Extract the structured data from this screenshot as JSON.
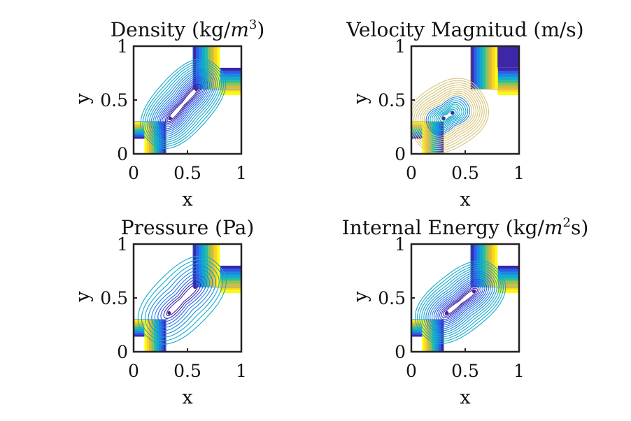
{
  "colors": {
    "colormap": [
      "#3e26a8",
      "#2e5be8",
      "#1d87e4",
      "#16a9cd",
      "#2bbda0",
      "#89c45c",
      "#d6bb3b",
      "#fdd226",
      "#f9fb0e"
    ],
    "axes": "#222222",
    "background": "#ffffff"
  },
  "chart_data": [
    {
      "id": "density",
      "type": "contour",
      "title": "Density (kg/m³)",
      "title_main": "Density (kg/",
      "title_var": "m",
      "title_sup": "3",
      "title_tail": ")",
      "xlabel": "x",
      "ylabel": "y",
      "xlim": [
        0,
        1
      ],
      "ylim": [
        0,
        1
      ],
      "xticks": [
        0,
        0.5,
        1
      ],
      "yticks": [
        0,
        0.5,
        1
      ],
      "xtick_labels": [
        "0",
        "0.5",
        "1"
      ],
      "ytick_labels": [
        "0",
        "0.5",
        "1"
      ],
      "cores": [
        [
          0.34,
          0.33
        ],
        [
          0.58,
          0.6
        ]
      ],
      "radius": 0.29,
      "levels": 16,
      "band_style": "bright"
    },
    {
      "id": "velocity",
      "type": "contour",
      "title": "Velocity Magnitud (m/s)",
      "title_main": "Velocity Magnitud (m/s)",
      "title_var": "",
      "title_sup": "",
      "title_tail": "",
      "xlabel": "x",
      "ylabel": "y",
      "xlim": [
        0,
        1
      ],
      "ylim": [
        0,
        1
      ],
      "xticks": [
        0,
        0.5,
        1
      ],
      "yticks": [
        0,
        0.5,
        1
      ],
      "xtick_labels": [
        "0",
        "0.5",
        "1"
      ],
      "ytick_labels": [
        "0",
        "0.5",
        "1"
      ],
      "cores": [
        [
          0.3,
          0.33
        ],
        [
          0.38,
          0.38
        ]
      ],
      "radius": 0.33,
      "levels": 18,
      "band_style": "velocity"
    },
    {
      "id": "pressure",
      "type": "contour",
      "title": "Pressure (Pa)",
      "title_main": "Pressure (Pa)",
      "title_var": "",
      "title_sup": "",
      "title_tail": "",
      "xlabel": "x",
      "ylabel": "y",
      "xlim": [
        0,
        1
      ],
      "ylim": [
        0,
        1
      ],
      "xticks": [
        0,
        0.5,
        1
      ],
      "yticks": [
        0,
        0.5,
        1
      ],
      "xtick_labels": [
        "0",
        "0.5",
        "1"
      ],
      "ytick_labels": [
        "0",
        "0.5",
        "1"
      ],
      "cores": [
        [
          0.33,
          0.36
        ],
        [
          0.57,
          0.6
        ]
      ],
      "radius": 0.3,
      "levels": 10,
      "band_style": "bright"
    },
    {
      "id": "internal-energy",
      "type": "contour",
      "title": "Internal Energy (kg/m²s)",
      "title_main": "Internal Energy (kg/",
      "title_var": "m",
      "title_sup": "2",
      "title_tail": "s)",
      "xlabel": "x",
      "ylabel": "y",
      "xlim": [
        0,
        1
      ],
      "ylim": [
        0,
        1
      ],
      "xticks": [
        0,
        0.5,
        1
      ],
      "yticks": [
        0,
        0.5,
        1
      ],
      "xtick_labels": [
        "0",
        "0.5",
        "1"
      ],
      "ytick_labels": [
        "0",
        "0.5",
        "1"
      ],
      "cores": [
        [
          0.33,
          0.36
        ],
        [
          0.58,
          0.56
        ]
      ],
      "radius": 0.3,
      "levels": 16,
      "band_style": "bright"
    }
  ]
}
